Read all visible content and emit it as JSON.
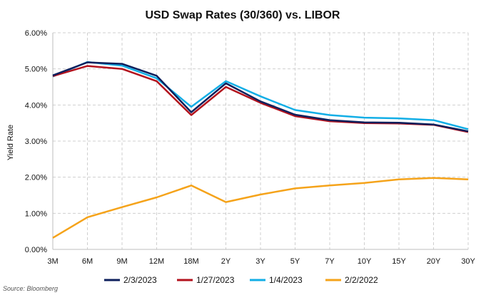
{
  "chart_data": {
    "type": "line",
    "title": "USD Swap Rates (30/360) vs. LIBOR",
    "xlabel": "",
    "ylabel": "Yield Rate",
    "categories": [
      "3M",
      "6M",
      "9M",
      "12M",
      "18M",
      "2Y",
      "3Y",
      "5Y",
      "7Y",
      "10Y",
      "15Y",
      "20Y",
      "30Y"
    ],
    "ylim": [
      0,
      6
    ],
    "yticks": [
      "0.00%",
      "1.00%",
      "2.00%",
      "3.00%",
      "4.00%",
      "5.00%",
      "6.00%"
    ],
    "grid": true,
    "legend_position": "bottom",
    "series": [
      {
        "name": "2/3/2023",
        "color": "#0d1f5c",
        "values": [
          4.82,
          5.18,
          5.14,
          4.81,
          3.8,
          4.6,
          4.1,
          3.73,
          3.58,
          3.52,
          3.51,
          3.46,
          3.27
        ]
      },
      {
        "name": "1/27/2023",
        "color": "#b3121d",
        "values": [
          4.8,
          5.08,
          5.0,
          4.66,
          3.72,
          4.5,
          4.06,
          3.69,
          3.55,
          3.5,
          3.49,
          3.45,
          3.25
        ]
      },
      {
        "name": "1/4/2023",
        "color": "#12aee6",
        "values": [
          4.79,
          5.19,
          5.09,
          4.74,
          3.95,
          4.66,
          4.24,
          3.86,
          3.72,
          3.65,
          3.63,
          3.58,
          3.33
        ]
      },
      {
        "name": "2/2/2022",
        "color": "#f5a31a",
        "values": [
          0.32,
          0.89,
          1.17,
          1.44,
          1.77,
          1.31,
          1.52,
          1.69,
          1.77,
          1.84,
          1.94,
          1.98,
          1.94
        ]
      }
    ]
  },
  "source": "Source: Bloomberg"
}
